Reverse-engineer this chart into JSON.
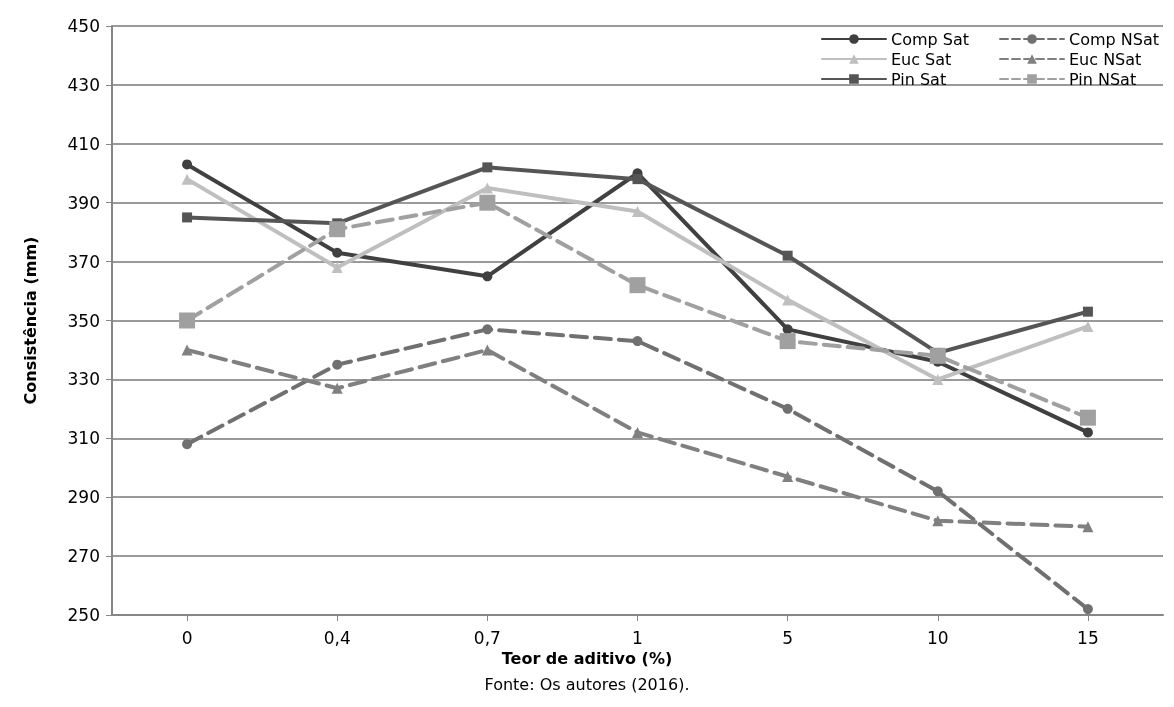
{
  "chart_data": {
    "type": "line",
    "xlabel": "Teor de aditivo (%)",
    "ylabel": "Consistência (mm)",
    "annotations": [
      "Fonte: Os autores (2016)."
    ],
    "categories": [
      "0",
      "0,4",
      "0,7",
      "1",
      "5",
      "10",
      "15"
    ],
    "ylim": [
      250,
      450
    ],
    "yticks": [
      250,
      270,
      290,
      310,
      330,
      350,
      370,
      390,
      410,
      430,
      450
    ],
    "grid": "y",
    "legend": "top right",
    "series": [
      {
        "name": "Comp Sat",
        "color": "#404040",
        "marker": "circle",
        "line_style": "solid",
        "values": [
          403,
          373,
          365,
          400,
          347,
          336,
          312
        ]
      },
      {
        "name": "Comp NSat",
        "color": "#707070",
        "marker": "circle",
        "line_style": "dashed",
        "values": [
          308,
          335,
          347,
          343,
          320,
          292,
          252
        ]
      },
      {
        "name": "Euc Sat",
        "color": "#bfbfbf",
        "marker": "triangle",
        "line_style": "solid",
        "values": [
          398,
          368,
          395,
          387,
          357,
          330,
          348
        ]
      },
      {
        "name": "Euc NSat",
        "color": "#808080",
        "marker": "triangle",
        "line_style": "dashed",
        "values": [
          340,
          327,
          340,
          312,
          297,
          282,
          280
        ]
      },
      {
        "name": "Pin Sat",
        "color": "#555555",
        "marker": "square",
        "line_style": "solid",
        "values": [
          385,
          383,
          402,
          398,
          372,
          339,
          353
        ]
      },
      {
        "name": "Pin NSat",
        "color": "#a0a0a0",
        "marker": "square",
        "line_style": "dashed",
        "values": [
          350,
          381,
          390,
          362,
          343,
          338,
          317
        ]
      }
    ]
  }
}
